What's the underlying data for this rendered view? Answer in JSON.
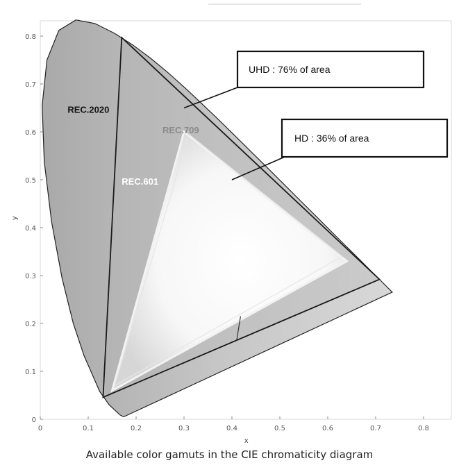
{
  "chart_data": {
    "type": "diagram",
    "caption": "Available color gamuts in the CIE chromaticity diagram",
    "xlabel": "x",
    "ylabel": "y",
    "xlim": [
      0,
      0.85
    ],
    "ylim": [
      0,
      0.85
    ],
    "x_ticks": [
      0,
      0.1,
      0.2,
      0.3,
      0.4,
      0.5,
      0.6,
      0.7,
      0.8
    ],
    "y_ticks": [
      0,
      0.1,
      0.2,
      0.3,
      0.4,
      0.5,
      0.6,
      0.7,
      0.8
    ],
    "x_tick_labels": [
      "0",
      "0.1",
      "0.2",
      "0.3",
      "0.4",
      "0.5",
      "0.6",
      "0.7",
      "0.8"
    ],
    "y_tick_labels": [
      "0",
      "0.1",
      "0.2",
      "0.3",
      "0.4",
      "0.5",
      "0.6",
      "0.7",
      "0.8"
    ],
    "spectral_locus": [
      [
        0.1741,
        0.005
      ],
      [
        0.1666,
        0.0089
      ],
      [
        0.144,
        0.0297
      ],
      [
        0.1241,
        0.0578
      ],
      [
        0.0913,
        0.1327
      ],
      [
        0.0687,
        0.2007
      ],
      [
        0.0454,
        0.295
      ],
      [
        0.0235,
        0.4127
      ],
      [
        0.0082,
        0.5384
      ],
      [
        0.0039,
        0.6548
      ],
      [
        0.0139,
        0.7502
      ],
      [
        0.0389,
        0.812
      ],
      [
        0.0743,
        0.8338
      ],
      [
        0.1142,
        0.8262
      ],
      [
        0.1547,
        0.8059
      ],
      [
        0.1929,
        0.7816
      ],
      [
        0.2296,
        0.7543
      ],
      [
        0.2658,
        0.7243
      ],
      [
        0.3016,
        0.6923
      ],
      [
        0.3373,
        0.6589
      ],
      [
        0.3731,
        0.6245
      ],
      [
        0.4087,
        0.5896
      ],
      [
        0.4441,
        0.5547
      ],
      [
        0.4788,
        0.5202
      ],
      [
        0.5125,
        0.4866
      ],
      [
        0.5448,
        0.4544
      ],
      [
        0.5752,
        0.4242
      ],
      [
        0.6029,
        0.3965
      ],
      [
        0.627,
        0.3725
      ],
      [
        0.6482,
        0.3514
      ],
      [
        0.6658,
        0.334
      ],
      [
        0.6801,
        0.3197
      ],
      [
        0.6915,
        0.3083
      ],
      [
        0.7006,
        0.2993
      ],
      [
        0.7079,
        0.292
      ],
      [
        0.7347,
        0.2653
      ]
    ],
    "gamuts": [
      {
        "name": "REC.2020",
        "primaries": [
          [
            0.708,
            0.292
          ],
          [
            0.17,
            0.797
          ],
          [
            0.131,
            0.046
          ]
        ]
      },
      {
        "name": "REC.709",
        "primaries": [
          [
            0.64,
            0.33
          ],
          [
            0.3,
            0.6
          ],
          [
            0.15,
            0.06
          ]
        ]
      },
      {
        "name": "REC.601",
        "primaries": [
          [
            0.63,
            0.34
          ],
          [
            0.31,
            0.595
          ],
          [
            0.155,
            0.07
          ]
        ]
      }
    ],
    "gamut_labels": {
      "rec2020": "REC.2020",
      "rec709": "REC.709",
      "rec601": "REC.601"
    },
    "annotations": [
      {
        "text": "UHD : 76% of area",
        "points_to": [
          0.3,
          0.65
        ]
      },
      {
        "text": "HD : 36% of area",
        "points_to": [
          0.4,
          0.5
        ]
      }
    ],
    "colors": {
      "locus_fill": "#c9c9c9",
      "gamut_line": "#1a1a1a",
      "rec709_line": "#f2f2f2",
      "rec601_label": "#ffffff",
      "rec709_label": "#8a8a8a"
    }
  }
}
